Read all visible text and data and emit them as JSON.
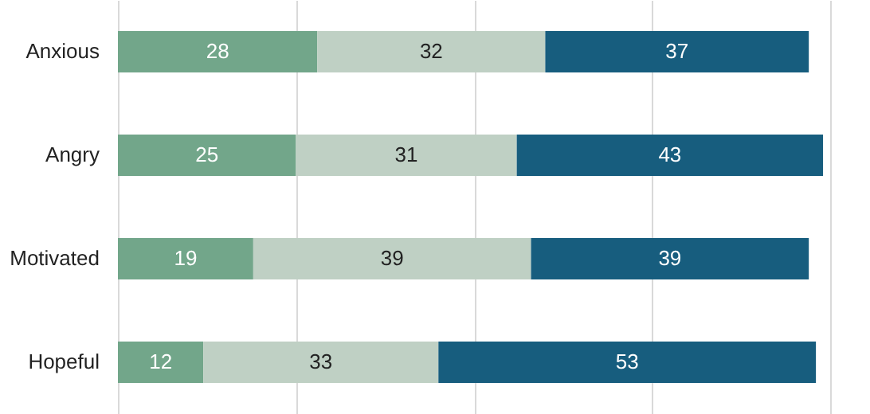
{
  "chart_data": {
    "type": "bar",
    "orientation": "horizontal",
    "stacked": true,
    "categories": [
      "Anxious",
      "Angry",
      "Motivated",
      "Hopeful"
    ],
    "series": [
      {
        "color": "#72a68a",
        "values": [
          28,
          25,
          19,
          12
        ]
      },
      {
        "color": "#bfd0c4",
        "values": [
          32,
          31,
          39,
          33
        ]
      },
      {
        "color": "#175d7e",
        "values": [
          37,
          43,
          39,
          53
        ]
      }
    ],
    "xlim": [
      0,
      100
    ],
    "xticks": [
      {
        "value": 0,
        "label": null
      },
      {
        "value": 25,
        "label": null
      },
      {
        "value": 50,
        "label": null
      },
      {
        "value": 75,
        "label": null
      },
      {
        "value": 100,
        "label": null
      }
    ],
    "grid": "x",
    "tick_labels": "y",
    "data_labels": true
  }
}
